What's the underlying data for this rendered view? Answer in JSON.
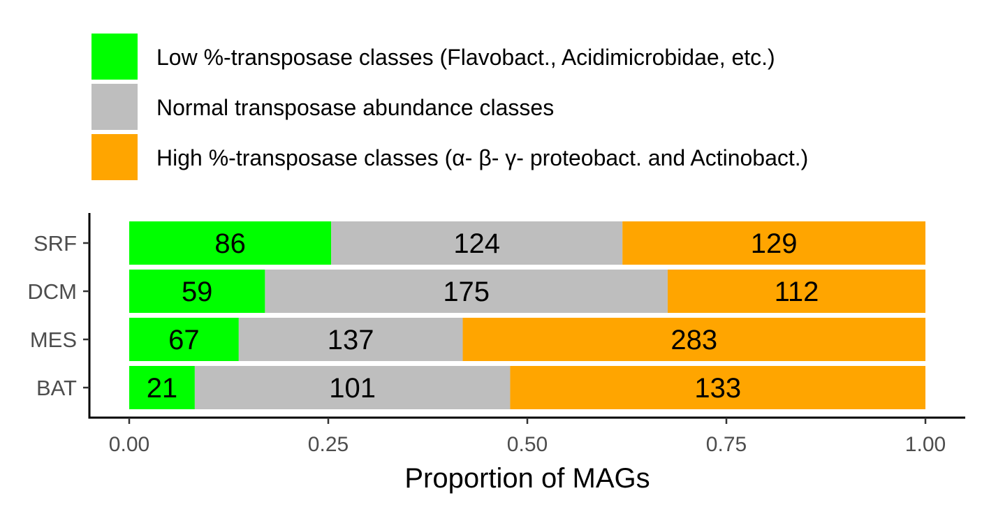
{
  "chart_data": {
    "type": "bar",
    "orientation": "horizontal",
    "stacked": true,
    "normalized": true,
    "categories": [
      "SRF",
      "DCM",
      "MES",
      "BAT"
    ],
    "series": [
      {
        "name": "Low %-transposase classes (Flavobact., Acidimicrobidae, etc.)",
        "color": "#00ff00",
        "values": [
          86,
          59,
          67,
          21
        ]
      },
      {
        "name": "Normal transposase abundance classes",
        "color": "#bebebe",
        "values": [
          124,
          175,
          137,
          101
        ]
      },
      {
        "name": "High %-transposase classes (α- β- γ- proteobact. and Actinobact.)",
        "color": "#ffa500",
        "values": [
          129,
          112,
          283,
          133
        ]
      }
    ],
    "xlabel": "Proportion of MAGs",
    "ylabel": "",
    "xlim": [
      0,
      1
    ],
    "x_ticks": [
      "0.00",
      "0.25",
      "0.50",
      "0.75",
      "1.00"
    ],
    "grid": false,
    "legend_position": "top"
  }
}
